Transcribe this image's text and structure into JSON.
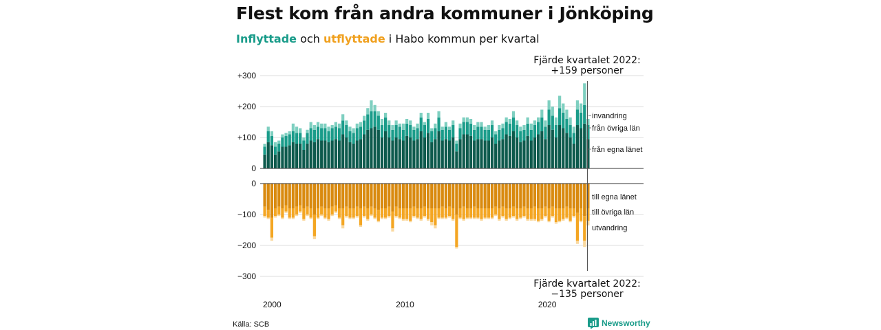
{
  "title": "Flest kom från andra kommuner i Jönköping",
  "subtitle": {
    "inflow_word": "Inflyttade",
    "connector": "och",
    "outflow_word": "utflyttade",
    "rest": "i Habo kommun per kvartal"
  },
  "source": "Källa: SCB",
  "brand": "Newsworthy",
  "colors": {
    "in_dark": "#0e5a4d",
    "in_mid": "#1a9c8a",
    "in_light": "#7ecfc0",
    "out_dark": "#d98a0f",
    "out_mid": "#f4a623",
    "out_light": "#fad9a0",
    "grid": "#dddddd",
    "axis": "#333333"
  },
  "chart_data": {
    "type": "bar",
    "stacked": true,
    "x_start_year": 2000,
    "periods_per_year": 4,
    "x_ticks": [
      "2000",
      "2010",
      "2020"
    ],
    "top_panel": {
      "y_ticks": [
        "+300",
        "+200",
        "+100",
        "0"
      ],
      "ylim": [
        0,
        300
      ],
      "series": [
        {
          "name": "från egna länet",
          "values": [
            45,
            85,
            75,
            45,
            55,
            70,
            70,
            75,
            85,
            80,
            80,
            60,
            80,
            90,
            85,
            95,
            90,
            90,
            85,
            90,
            95,
            90,
            110,
            100,
            85,
            80,
            90,
            95,
            110,
            125,
            130,
            135,
            125,
            100,
            120,
            100,
            90,
            100,
            95,
            90,
            105,
            100,
            90,
            95,
            120,
            100,
            115,
            85,
            95,
            120,
            90,
            95,
            90,
            100,
            55,
            95,
            110,
            110,
            105,
            90,
            95,
            95,
            90,
            90,
            100,
            80,
            90,
            95,
            110,
            105,
            120,
            100,
            85,
            90,
            105,
            90,
            100,
            110,
            120,
            95,
            140,
            125,
            100,
            140,
            130,
            115,
            100,
            80,
            140,
            130,
            145,
            95
          ]
        },
        {
          "name": "från övriga län",
          "values": [
            25,
            35,
            30,
            25,
            25,
            30,
            35,
            35,
            35,
            35,
            35,
            30,
            35,
            40,
            40,
            40,
            40,
            40,
            35,
            40,
            40,
            40,
            45,
            40,
            35,
            35,
            40,
            40,
            45,
            50,
            55,
            50,
            45,
            40,
            45,
            40,
            35,
            40,
            40,
            35,
            40,
            40,
            35,
            35,
            45,
            40,
            45,
            35,
            35,
            45,
            35,
            40,
            35,
            40,
            25,
            35,
            40,
            40,
            40,
            35,
            40,
            40,
            35,
            35,
            40,
            30,
            35,
            35,
            40,
            40,
            45,
            40,
            35,
            35,
            40,
            35,
            40,
            40,
            45,
            40,
            50,
            45,
            40,
            55,
            50,
            45,
            40,
            35,
            50,
            50,
            60,
            45
          ]
        },
        {
          "name": "invandring",
          "values": [
            10,
            15,
            15,
            15,
            10,
            10,
            10,
            10,
            25,
            20,
            15,
            10,
            10,
            20,
            15,
            15,
            15,
            15,
            15,
            10,
            15,
            15,
            20,
            15,
            15,
            15,
            15,
            15,
            15,
            20,
            35,
            20,
            15,
            20,
            15,
            15,
            15,
            15,
            10,
            20,
            15,
            15,
            10,
            15,
            15,
            10,
            20,
            10,
            15,
            20,
            10,
            15,
            10,
            15,
            10,
            15,
            15,
            15,
            15,
            15,
            15,
            15,
            10,
            15,
            15,
            10,
            15,
            15,
            15,
            15,
            20,
            15,
            15,
            15,
            20,
            20,
            15,
            15,
            25,
            20,
            30,
            30,
            25,
            40,
            30,
            30,
            25,
            20,
            30,
            30,
            70,
            20
          ]
        }
      ],
      "annotation": {
        "line1": "Fjärde kvartalet 2022:",
        "line2": "+159 personer"
      }
    },
    "bottom_panel": {
      "y_ticks": [
        "0",
        "−100",
        "−200",
        "−300"
      ],
      "ylim": [
        -300,
        0
      ],
      "series": [
        {
          "name": "till egna länet",
          "values": [
            -75,
            -85,
            -110,
            -80,
            -75,
            -80,
            -70,
            -80,
            -80,
            -75,
            -70,
            -80,
            -75,
            -80,
            -100,
            -80,
            -75,
            -80,
            -80,
            -75,
            -70,
            -80,
            -80,
            -75,
            -80,
            -80,
            -75,
            -80,
            -75,
            -80,
            -75,
            -80,
            -85,
            -80,
            -80,
            -75,
            -90,
            -75,
            -80,
            -80,
            -80,
            -80,
            -75,
            -80,
            -80,
            -75,
            -80,
            -80,
            -80,
            -80,
            -75,
            -80,
            -75,
            -80,
            -100,
            -80,
            -75,
            -80,
            -80,
            -75,
            -80,
            -80,
            -80,
            -80,
            -80,
            -75,
            -80,
            -75,
            -80,
            -80,
            -75,
            -80,
            -80,
            -75,
            -80,
            -80,
            -75,
            -80,
            -80,
            -75,
            -80,
            -75,
            -80,
            -80,
            -80,
            -75,
            -80,
            -80,
            -95,
            -80,
            -105,
            -80
          ]
        },
        {
          "name": "till övriga län",
          "values": [
            -30,
            -25,
            -65,
            -25,
            -25,
            -30,
            -20,
            -30,
            -30,
            -25,
            -20,
            -35,
            -25,
            -30,
            -70,
            -30,
            -25,
            -30,
            -35,
            -25,
            -20,
            -30,
            -55,
            -30,
            -30,
            -30,
            -30,
            -55,
            -30,
            -35,
            -25,
            -30,
            -35,
            -30,
            -30,
            -30,
            -55,
            -30,
            -30,
            -35,
            -35,
            -40,
            -30,
            -30,
            -35,
            -30,
            -35,
            -45,
            -55,
            -30,
            -35,
            -30,
            -30,
            -35,
            -105,
            -30,
            -40,
            -30,
            -30,
            -35,
            -30,
            -35,
            -30,
            -30,
            -30,
            -25,
            -35,
            -30,
            -35,
            -30,
            -30,
            -35,
            -30,
            -30,
            -35,
            -35,
            -40,
            -40,
            -35,
            -30,
            -40,
            -30,
            -45,
            -40,
            -35,
            -35,
            -40,
            -25,
            -90,
            -40,
            -80,
            -40
          ]
        },
        {
          "name": "utvandring",
          "values": [
            -5,
            -5,
            -10,
            -5,
            -5,
            -5,
            -5,
            -5,
            -5,
            -5,
            -5,
            -5,
            -5,
            -5,
            -10,
            -5,
            -5,
            -5,
            -5,
            -5,
            -5,
            -5,
            -10,
            -5,
            -5,
            -5,
            -5,
            -5,
            -5,
            -5,
            -5,
            -5,
            -5,
            -5,
            -5,
            -5,
            -10,
            -5,
            -5,
            -5,
            -5,
            -5,
            -5,
            -5,
            -5,
            -5,
            -5,
            -10,
            -10,
            -5,
            -5,
            -5,
            -5,
            -5,
            -5,
            -5,
            -5,
            -5,
            -5,
            -5,
            -5,
            -5,
            -5,
            -5,
            -5,
            -5,
            -5,
            -5,
            -5,
            -5,
            -5,
            -5,
            -5,
            -5,
            -5,
            -5,
            -5,
            -5,
            -5,
            -5,
            -5,
            -5,
            -5,
            -5,
            -5,
            -5,
            -5,
            -5,
            -10,
            -5,
            -20,
            -15
          ]
        }
      ],
      "annotation": {
        "line1": "Fjärde kvartalet 2022:",
        "line2": "−135 personer"
      }
    }
  }
}
